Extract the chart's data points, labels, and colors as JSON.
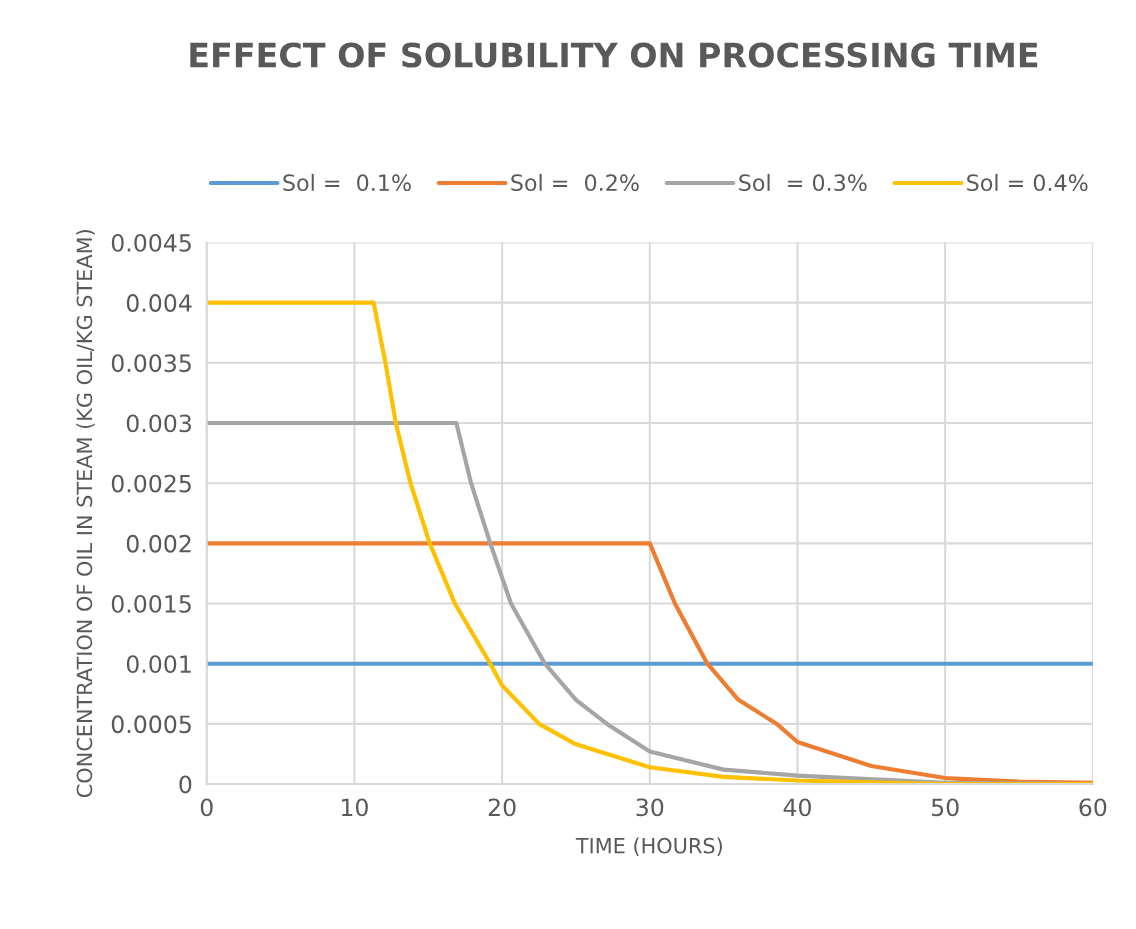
{
  "chart_data": {
    "type": "line",
    "title": "EFFECT OF SOLUBILITY ON PROCESSING TIME",
    "xlabel": "TIME (HOURS)",
    "ylabel": "CONCENTRATION OF OIL IN STEAM (KG OIL/KG STEAM)",
    "series": [
      {
        "name": "Sol =  0.1%",
        "color": "#5b9bd5",
        "x": [
          0,
          60
        ],
        "values": [
          0.001,
          0.001
        ]
      },
      {
        "name": "Sol =  0.2%",
        "color": "#ed7d31",
        "x": [
          0,
          30,
          31.7,
          33.9,
          36,
          38.6,
          40,
          45,
          50,
          55,
          60
        ],
        "values": [
          0.002,
          0.002,
          0.0015,
          0.001,
          0.0007,
          0.0005,
          0.00035,
          0.00015,
          5e-05,
          2e-05,
          1e-05
        ]
      },
      {
        "name": "Sol  = 0.3%",
        "color": "#a5a5a5",
        "x": [
          0,
          16.9,
          17.9,
          19.2,
          20.6,
          22.9,
          25,
          27.1,
          30,
          35,
          40,
          50,
          60
        ],
        "values": [
          0.003,
          0.003,
          0.0025,
          0.002,
          0.0015,
          0.001,
          0.0007,
          0.0005,
          0.00027,
          0.00012,
          7e-05,
          1e-05,
          0
        ]
      },
      {
        "name": "Sol = 0.4%",
        "color": "#ffc000",
        "x": [
          0,
          11.3,
          12.1,
          12.8,
          13.8,
          15.1,
          16.8,
          19.2,
          20,
          22.5,
          25,
          30,
          35,
          40,
          50,
          60
        ],
        "values": [
          0.004,
          0.004,
          0.0035,
          0.003,
          0.0025,
          0.002,
          0.0015,
          0.001,
          0.00082,
          0.0005,
          0.00033,
          0.00014,
          6e-05,
          3e-05,
          0,
          0
        ]
      }
    ],
    "xlim": [
      0,
      60
    ],
    "xticks": [
      0,
      10,
      20,
      30,
      40,
      50,
      60
    ],
    "ylim": [
      0,
      0.0045
    ],
    "yticks": [
      0,
      0.0005,
      0.001,
      0.0015,
      0.002,
      0.0025,
      0.003,
      0.0035,
      0.004,
      0.0045
    ],
    "grid": true,
    "legend": "top",
    "marker": "none",
    "line_style": "solid"
  }
}
